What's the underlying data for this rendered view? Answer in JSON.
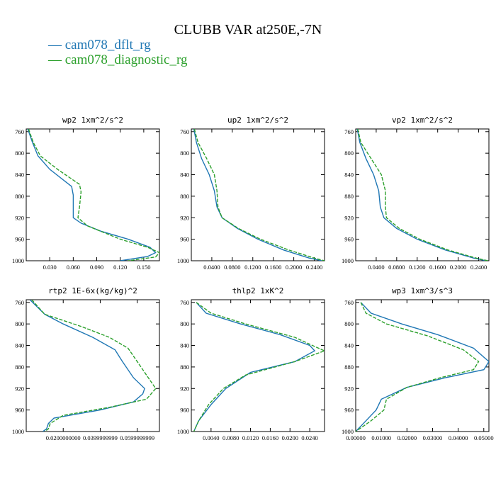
{
  "figure": {
    "title": "CLUBB VAR at250E,-7N",
    "legend": [
      {
        "label": "— cam078_dflt_rg",
        "color": "#1f77b4"
      },
      {
        "label": "— cam078_diagnostic_rg",
        "color": "#2ca02c"
      }
    ]
  },
  "chart_data": [
    {
      "type": "line",
      "title": "wp2  1xm^2/s^2",
      "ylim": [
        1000,
        755
      ],
      "yticks": [
        760,
        800,
        840,
        880,
        920,
        960,
        1000
      ],
      "xlim": [
        0,
        0.17
      ],
      "xticks": [
        0.03,
        0.06,
        0.09,
        0.12,
        0.15
      ],
      "xticklabels": [
        "0.030",
        "0.060",
        "0.090",
        "0.120",
        "0.150"
      ],
      "series": [
        {
          "name": "cam078_dflt_rg",
          "color": "#1f77b4",
          "dash": false,
          "y": [
            755,
            780,
            805,
            830,
            862,
            878,
            920,
            930,
            945,
            960,
            975,
            985,
            992,
            1000
          ],
          "x": [
            0.002,
            0.008,
            0.015,
            0.03,
            0.058,
            0.06,
            0.06,
            0.07,
            0.095,
            0.13,
            0.158,
            0.165,
            0.155,
            0.12
          ]
        },
        {
          "name": "cam078_diagnostic_rg",
          "color": "#2ca02c",
          "dash": true,
          "y": [
            755,
            780,
            805,
            830,
            858,
            872,
            900,
            920,
            935,
            960,
            975,
            985,
            993,
            1000
          ],
          "x": [
            0.003,
            0.009,
            0.018,
            0.04,
            0.068,
            0.07,
            0.068,
            0.066,
            0.078,
            0.12,
            0.155,
            0.17,
            0.165,
            0.13
          ]
        }
      ]
    },
    {
      "type": "line",
      "title": "up2  1xm^2/s^2",
      "ylim": [
        1000,
        755
      ],
      "yticks": [
        760,
        800,
        840,
        880,
        920,
        960,
        1000
      ],
      "xlim": [
        0,
        0.26
      ],
      "xticks": [
        0.04,
        0.08,
        0.12,
        0.16,
        0.2,
        0.24
      ],
      "xticklabels": [
        "0.0400",
        "0.0800",
        "0.1200",
        "0.1600",
        "0.2000",
        "0.2400"
      ],
      "series": [
        {
          "name": "cam078_dflt_rg",
          "color": "#1f77b4",
          "dash": false,
          "y": [
            755,
            780,
            810,
            840,
            870,
            900,
            920,
            940,
            960,
            980,
            995,
            1000
          ],
          "x": [
            0.005,
            0.01,
            0.02,
            0.035,
            0.045,
            0.05,
            0.06,
            0.09,
            0.13,
            0.18,
            0.23,
            0.255
          ]
        },
        {
          "name": "cam078_diagnostic_rg",
          "color": "#2ca02c",
          "dash": true,
          "y": [
            755,
            780,
            810,
            840,
            870,
            900,
            920,
            940,
            960,
            980,
            995,
            1000
          ],
          "x": [
            0.006,
            0.013,
            0.03,
            0.045,
            0.05,
            0.052,
            0.06,
            0.092,
            0.135,
            0.19,
            0.24,
            0.26
          ]
        }
      ]
    },
    {
      "type": "line",
      "title": "vp2  1xm^2/s^2",
      "ylim": [
        1000,
        755
      ],
      "yticks": [
        760,
        800,
        840,
        880,
        920,
        960,
        1000
      ],
      "xlim": [
        0,
        0.26
      ],
      "xticks": [
        0.04,
        0.08,
        0.12,
        0.16,
        0.2,
        0.24
      ],
      "xticklabels": [
        "0.0400",
        "0.0800",
        "0.1200",
        "0.1600",
        "0.2000",
        "0.2400"
      ],
      "series": [
        {
          "name": "cam078_dflt_rg",
          "color": "#1f77b4",
          "dash": false,
          "y": [
            755,
            780,
            810,
            840,
            870,
            900,
            920,
            940,
            960,
            980,
            995,
            1000
          ],
          "x": [
            0.003,
            0.008,
            0.02,
            0.035,
            0.045,
            0.048,
            0.055,
            0.08,
            0.12,
            0.175,
            0.23,
            0.255
          ]
        },
        {
          "name": "cam078_diagnostic_rg",
          "color": "#2ca02c",
          "dash": true,
          "y": [
            755,
            780,
            810,
            840,
            870,
            900,
            920,
            940,
            960,
            980,
            995,
            1000
          ],
          "x": [
            0.004,
            0.01,
            0.03,
            0.05,
            0.058,
            0.058,
            0.06,
            0.085,
            0.125,
            0.18,
            0.235,
            0.258
          ]
        }
      ]
    },
    {
      "type": "line",
      "title": "rtp2  1E-6x(kg/kg)^2",
      "ylim": [
        1000,
        755
      ],
      "yticks": [
        760,
        800,
        840,
        880,
        920,
        960,
        1000
      ],
      "xlim": [
        0,
        0.072
      ],
      "xticks": [
        0.02,
        0.04,
        0.06
      ],
      "xticklabels": [
        "0.0200000000",
        "0.0399999999",
        "0.0599999999"
      ],
      "series": [
        {
          "name": "cam078_dflt_rg",
          "color": "#1f77b4",
          "dash": false,
          "y": [
            755,
            782,
            800,
            825,
            848,
            870,
            900,
            920,
            930,
            945,
            960,
            975,
            985,
            995,
            1000
          ],
          "x": [
            0.002,
            0.01,
            0.02,
            0.036,
            0.048,
            0.052,
            0.058,
            0.064,
            0.063,
            0.058,
            0.04,
            0.015,
            0.012,
            0.011,
            0.009
          ]
        },
        {
          "name": "cam078_diagnostic_rg",
          "color": "#2ca02c",
          "dash": true,
          "y": [
            755,
            782,
            805,
            825,
            845,
            870,
            900,
            920,
            940,
            955,
            970,
            985,
            995,
            1000
          ],
          "x": [
            0.003,
            0.01,
            0.03,
            0.045,
            0.055,
            0.06,
            0.066,
            0.07,
            0.065,
            0.045,
            0.02,
            0.013,
            0.012,
            0.01
          ]
        }
      ]
    },
    {
      "type": "line",
      "title": "thlp2  1xK^2",
      "ylim": [
        1000,
        755
      ],
      "yticks": [
        760,
        800,
        840,
        880,
        920,
        960,
        1000
      ],
      "xlim": [
        0,
        0.027
      ],
      "xticks": [
        0.004,
        0.008,
        0.012,
        0.016,
        0.02,
        0.024
      ],
      "xticklabels": [
        "0.0040",
        "0.0080",
        "0.0120",
        "0.0160",
        "0.0200",
        "0.0240"
      ],
      "series": [
        {
          "name": "cam078_dflt_rg",
          "color": "#1f77b4",
          "dash": false,
          "y": [
            760,
            780,
            800,
            820,
            840,
            850,
            870,
            890,
            920,
            950,
            980,
            1000
          ],
          "x": [
            0.001,
            0.003,
            0.01,
            0.018,
            0.024,
            0.025,
            0.021,
            0.012,
            0.007,
            0.004,
            0.0015,
            0.0005
          ]
        },
        {
          "name": "cam078_diagnostic_rg",
          "color": "#2ca02c",
          "dash": true,
          "y": [
            760,
            780,
            800,
            825,
            842,
            850,
            870,
            895,
            920,
            950,
            980,
            1000
          ],
          "x": [
            0.001,
            0.004,
            0.011,
            0.021,
            0.025,
            0.027,
            0.021,
            0.011,
            0.0065,
            0.0035,
            0.0015,
            0.0005
          ]
        }
      ]
    },
    {
      "type": "line",
      "title": "wp3  1xm^3/s^3",
      "ylim": [
        1000,
        755
      ],
      "yticks": [
        760,
        800,
        840,
        880,
        920,
        960,
        1000
      ],
      "xlim": [
        0,
        0.052
      ],
      "xticks": [
        0,
        0.01,
        0.02,
        0.03,
        0.04,
        0.05
      ],
      "xticklabels": [
        "0.00000",
        "0.01000",
        "0.02000",
        "0.03000",
        "0.04000",
        "0.05000"
      ],
      "series": [
        {
          "name": "cam078_dflt_rg",
          "color": "#1f77b4",
          "dash": false,
          "y": [
            760,
            780,
            800,
            820,
            845,
            870,
            885,
            900,
            918,
            940,
            960,
            980,
            1000
          ],
          "x": [
            0.002,
            0.006,
            0.018,
            0.032,
            0.046,
            0.052,
            0.05,
            0.035,
            0.02,
            0.01,
            0.008,
            0.004,
            0.0
          ]
        },
        {
          "name": "cam078_diagnostic_rg",
          "color": "#2ca02c",
          "dash": true,
          "y": [
            760,
            780,
            800,
            822,
            848,
            870,
            885,
            900,
            918,
            940,
            960,
            980,
            1000
          ],
          "x": [
            0.002,
            0.004,
            0.012,
            0.028,
            0.042,
            0.048,
            0.046,
            0.033,
            0.02,
            0.012,
            0.011,
            0.006,
            0.0
          ]
        }
      ]
    }
  ]
}
